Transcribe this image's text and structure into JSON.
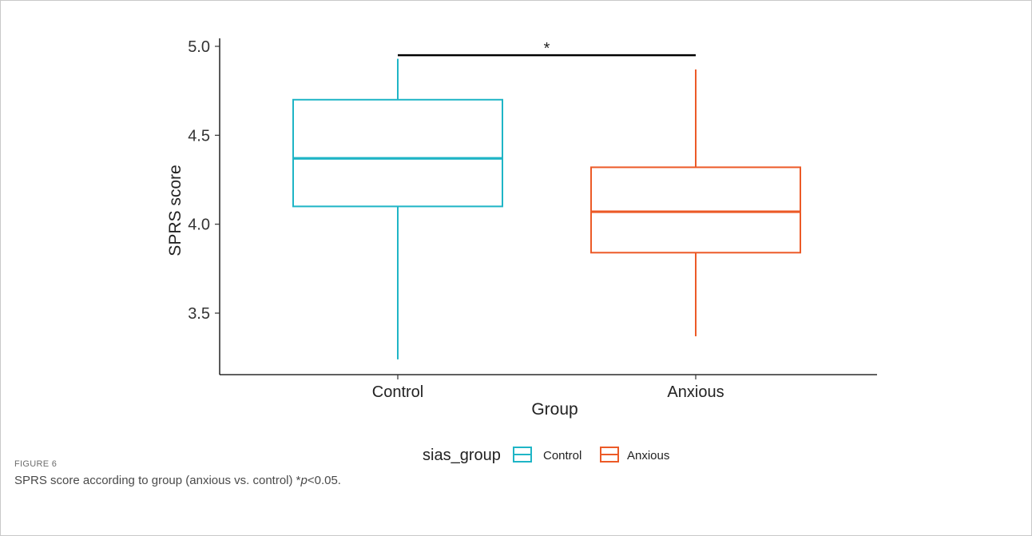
{
  "chart_data": {
    "type": "box",
    "ylabel": "SPRS score",
    "xlabel": "Group",
    "ylim": [
      3.3,
      5.05
    ],
    "yticks": [
      3.5,
      4.0,
      4.5,
      5.0
    ],
    "categories": [
      "Control",
      "Anxious"
    ],
    "boxes": [
      {
        "group": "Control",
        "min": 3.24,
        "q1": 4.1,
        "median": 4.37,
        "q3": 4.7,
        "max": 4.93,
        "color": "#1fb5c6"
      },
      {
        "group": "Anxious",
        "min": 3.37,
        "q1": 3.84,
        "median": 4.07,
        "q3": 4.32,
        "max": 4.87,
        "color": "#ec5a27"
      }
    ],
    "significance": {
      "from": "Control",
      "to": "Anxious",
      "y": 4.95,
      "label": "*"
    },
    "legend": {
      "title": "sias_group",
      "position": "bottom",
      "entries": [
        {
          "label": "Control",
          "color": "#1fb5c6"
        },
        {
          "label": "Anxious",
          "color": "#ec5a27"
        }
      ]
    },
    "grid": false
  },
  "caption": {
    "label": "FIGURE 6",
    "text_before": "SPRS score according to group (anxious vs. control) *",
    "text_p": "p",
    "text_after": "<0.05."
  }
}
